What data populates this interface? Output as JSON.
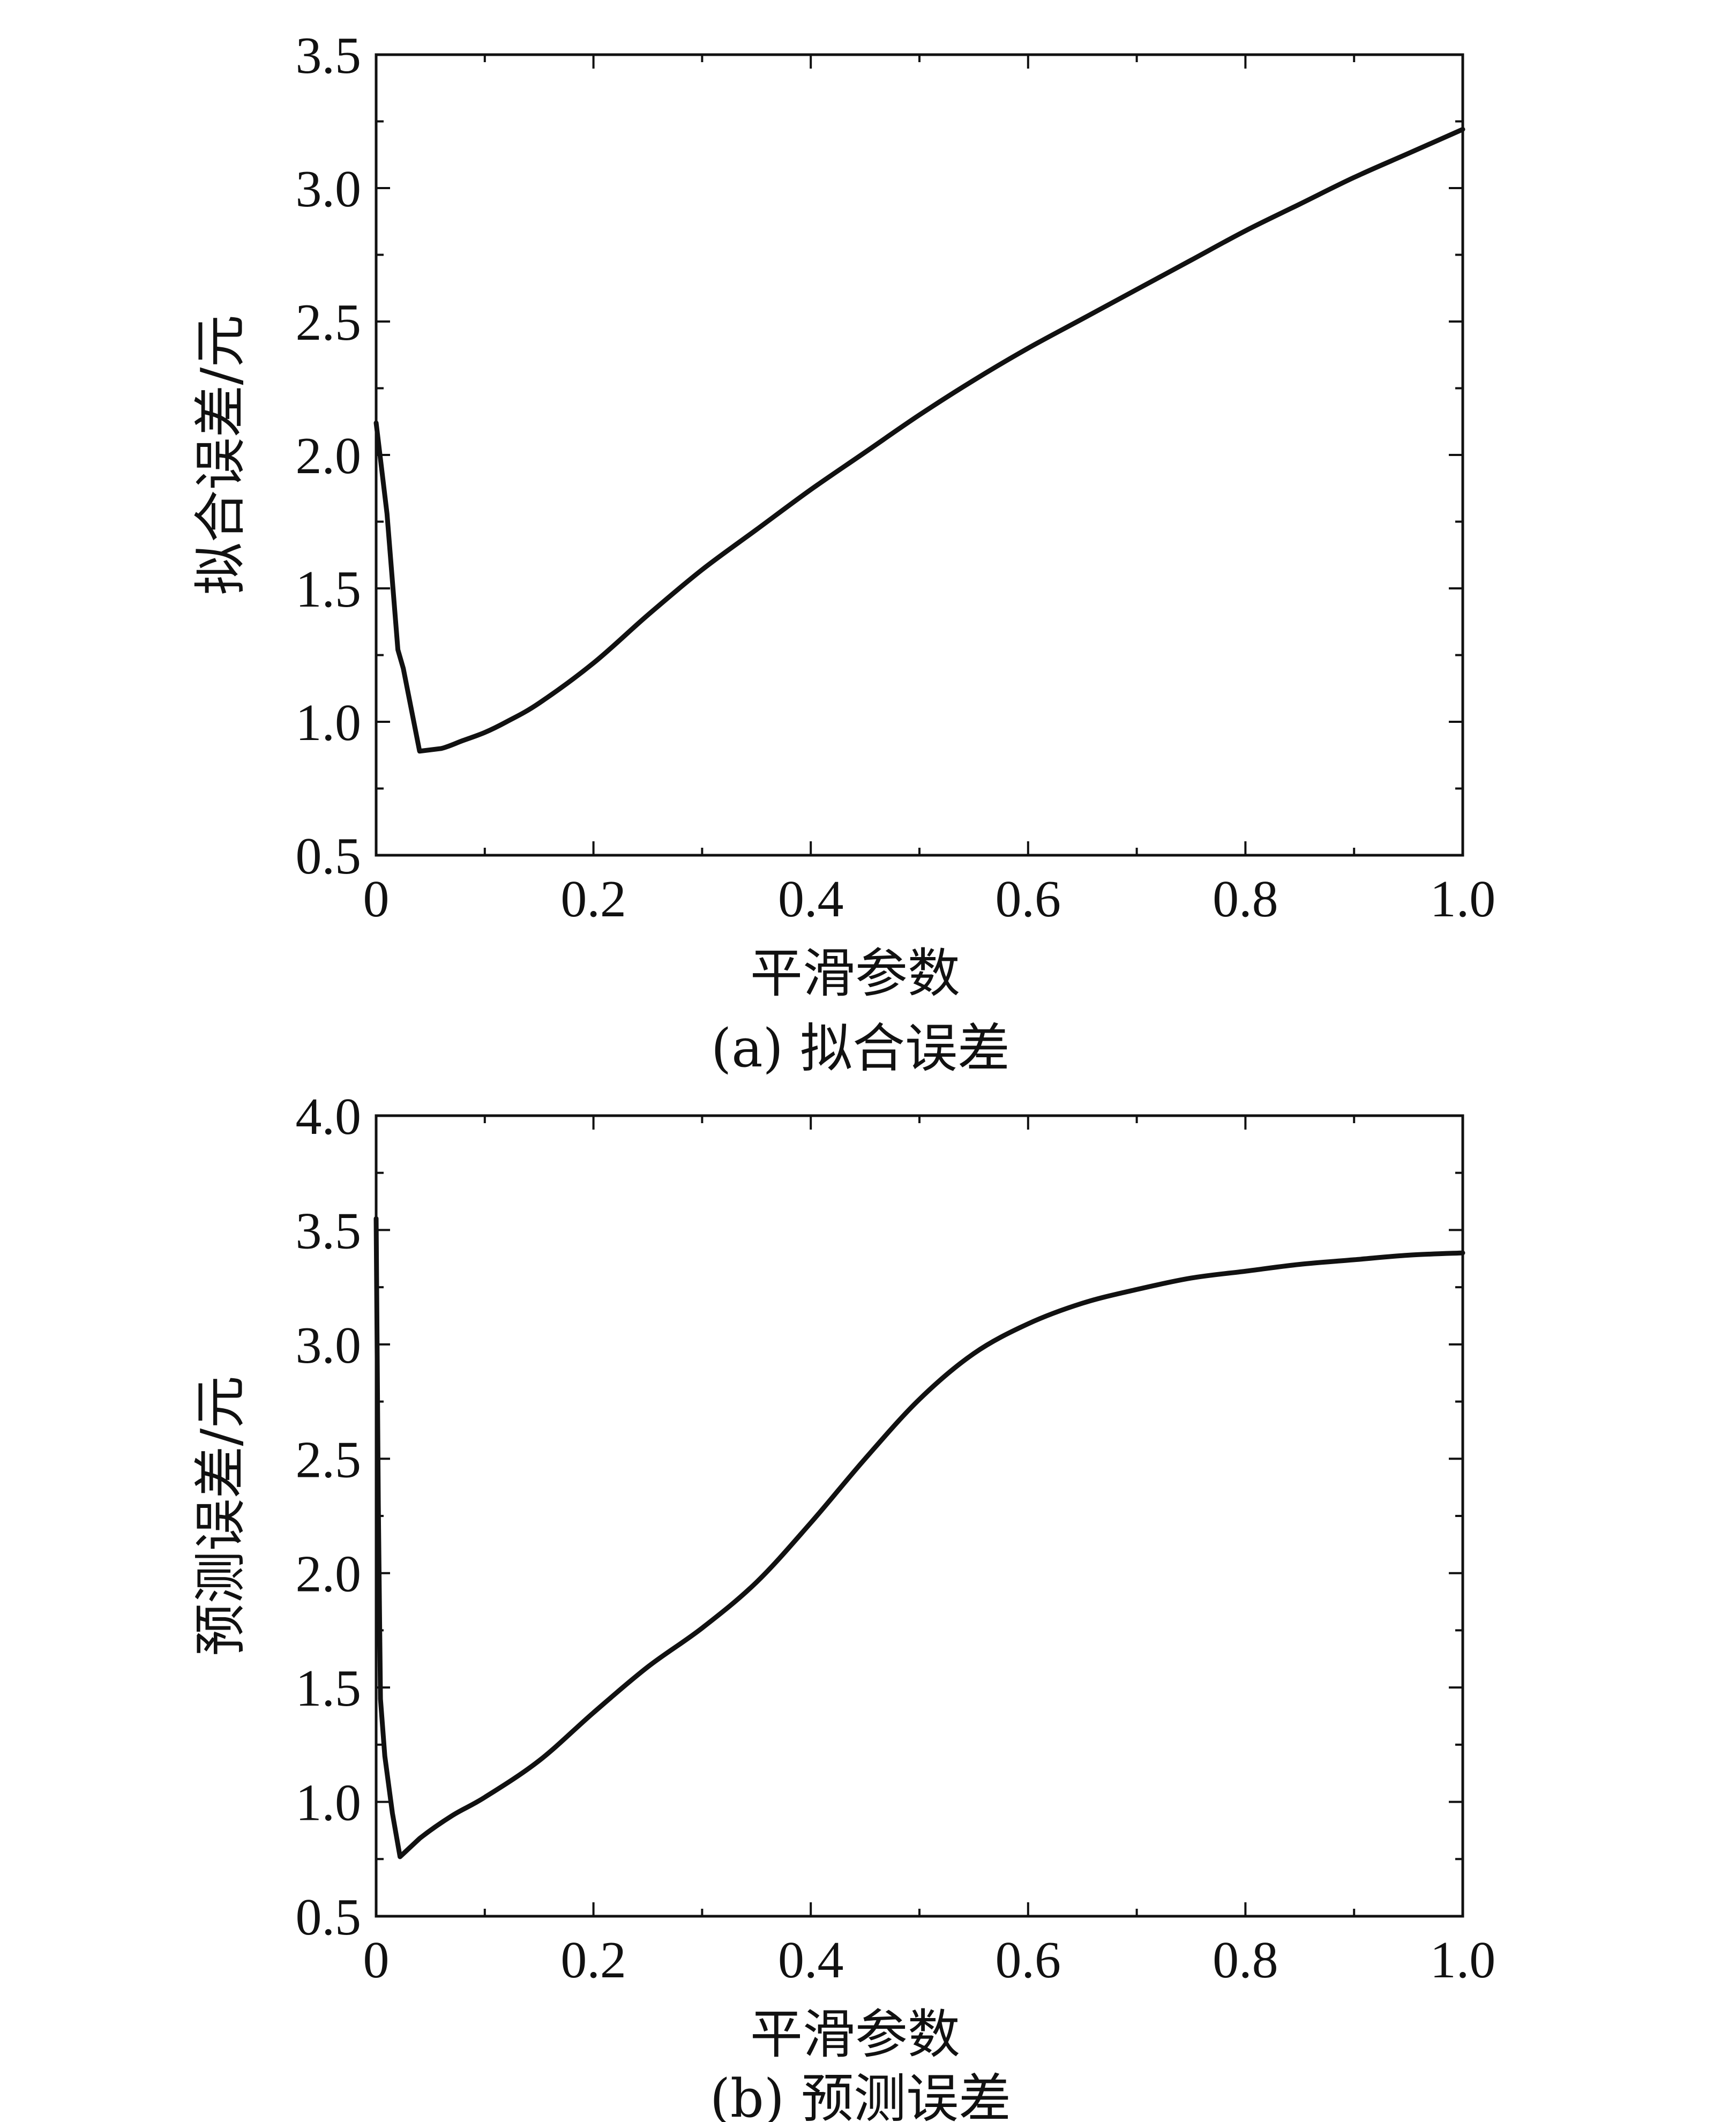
{
  "chart_data": [
    {
      "type": "line",
      "caption": "(a) 拟合误差",
      "xlabel": "平滑参数",
      "ylabel": "拟合误差/元",
      "xlim": [
        0,
        1.0
      ],
      "ylim": [
        0.5,
        3.5
      ],
      "xticks": [
        "0",
        "0.2",
        "0.4",
        "0.6",
        "0.8",
        "1.0"
      ],
      "yticks": [
        "0.5",
        "1.0",
        "1.5",
        "2.0",
        "2.5",
        "3.0",
        "3.5"
      ],
      "grid": false,
      "series": [
        {
          "x": [
            0.0,
            0.01,
            0.02,
            0.025,
            0.04,
            0.06,
            0.08,
            0.1,
            0.12,
            0.15,
            0.2,
            0.25,
            0.3,
            0.35,
            0.4,
            0.45,
            0.5,
            0.55,
            0.6,
            0.65,
            0.7,
            0.75,
            0.8,
            0.85,
            0.9,
            0.95,
            1.0
          ],
          "y": [
            2.12,
            1.78,
            1.27,
            1.2,
            0.89,
            0.9,
            0.93,
            0.96,
            1.0,
            1.07,
            1.22,
            1.4,
            1.57,
            1.72,
            1.87,
            2.01,
            2.15,
            2.28,
            2.4,
            2.51,
            2.62,
            2.73,
            2.84,
            2.94,
            3.04,
            3.13,
            3.22
          ]
        }
      ]
    },
    {
      "type": "line",
      "caption": "(b) 预测误差",
      "xlabel": "平滑参数",
      "ylabel": "预测误差/元",
      "xlim": [
        0,
        1.0
      ],
      "ylim": [
        0.5,
        4.0
      ],
      "xticks": [
        "0",
        "0.2",
        "0.4",
        "0.6",
        "0.8",
        "1.0"
      ],
      "yticks": [
        "0.5",
        "1.0",
        "1.5",
        "2.0",
        "2.5",
        "3.0",
        "3.5",
        "4.0"
      ],
      "grid": false,
      "series": [
        {
          "x": [
            0.0,
            0.002,
            0.004,
            0.008,
            0.015,
            0.022,
            0.04,
            0.07,
            0.1,
            0.15,
            0.2,
            0.25,
            0.3,
            0.35,
            0.4,
            0.45,
            0.5,
            0.55,
            0.6,
            0.65,
            0.7,
            0.75,
            0.8,
            0.85,
            0.9,
            0.95,
            1.0
          ],
          "y": [
            3.55,
            2.3,
            1.45,
            1.2,
            0.95,
            0.76,
            0.84,
            0.94,
            1.02,
            1.18,
            1.39,
            1.59,
            1.76,
            1.96,
            2.22,
            2.5,
            2.76,
            2.96,
            3.09,
            3.18,
            3.24,
            3.29,
            3.32,
            3.35,
            3.37,
            3.39,
            3.4
          ]
        }
      ]
    }
  ]
}
